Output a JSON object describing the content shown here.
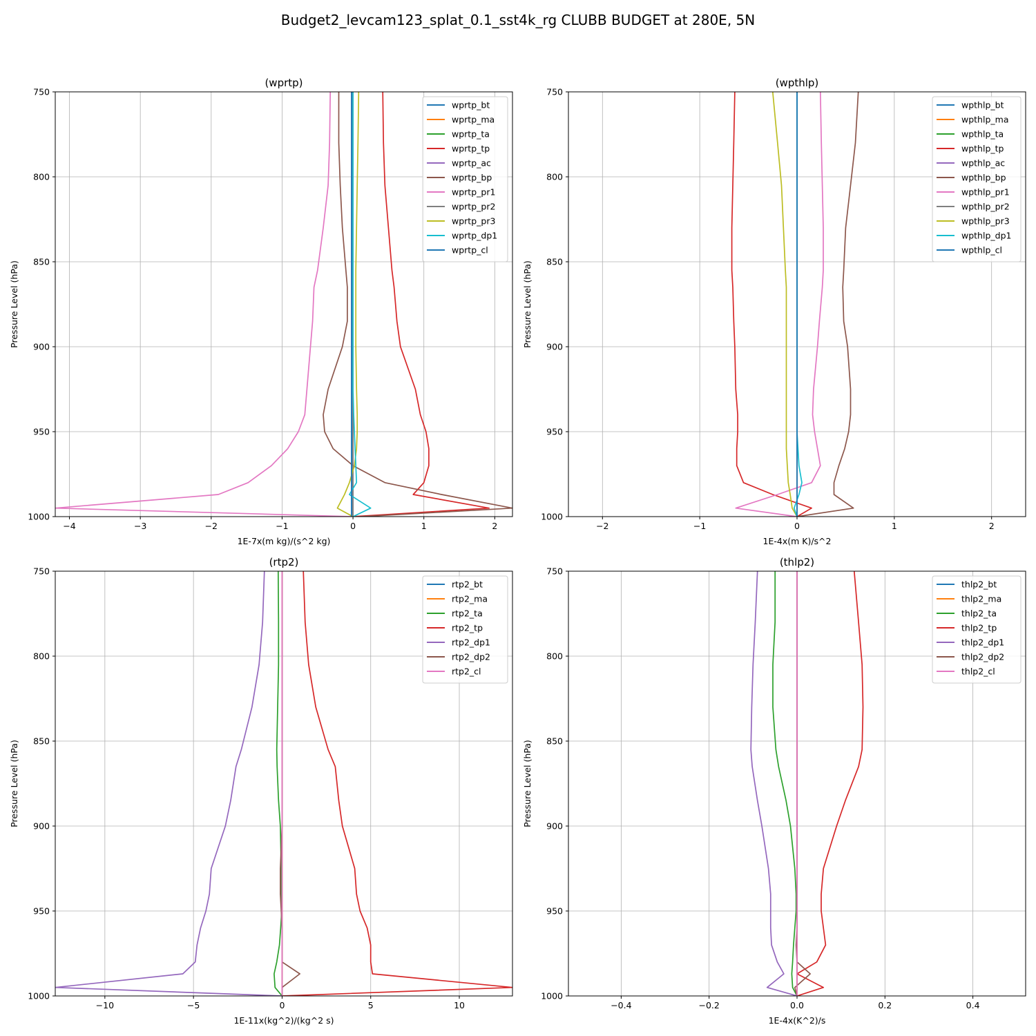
{
  "figure": {
    "title": "Budget2_levcam123_splat_0.1_sst4k_rg CLUBB BUDGET at 280E, 5N"
  },
  "chart_data": [
    {
      "type": "line",
      "title": "(wprtp)",
      "xlabel": "1E-7x(m kg)/(s^2 kg)",
      "ylabel": "Pressure Level (hPa)",
      "xlim": [
        -4.2,
        2.25
      ],
      "ylim": [
        1000,
        750
      ],
      "xticks": [
        -4,
        -3,
        -2,
        -1,
        0,
        1,
        2
      ],
      "xtick_labels": [
        "−4",
        "−3",
        "−2",
        "−1",
        "0",
        "1",
        "2"
      ],
      "yticks": [
        750,
        800,
        850,
        900,
        950,
        1000
      ],
      "ytick_labels": [
        "750",
        "800",
        "850",
        "900",
        "950",
        "1000"
      ],
      "grid": true,
      "legend_position": "top-right",
      "levels": [
        750,
        780,
        805,
        830,
        855,
        865,
        885,
        900,
        925,
        940,
        950,
        960,
        970,
        980,
        987,
        995,
        1000
      ],
      "series": [
        {
          "name": "wprtp_bt",
          "color": "#1f77b4",
          "values": [
            -0.02,
            -0.02,
            -0.02,
            -0.02,
            -0.02,
            -0.02,
            -0.02,
            -0.02,
            -0.02,
            -0.02,
            -0.02,
            -0.02,
            -0.02,
            -0.02,
            -0.02,
            -0.02,
            -0.02
          ]
        },
        {
          "name": "wprtp_ma",
          "color": "#ff7f0e",
          "values": [
            0,
            0,
            0,
            0,
            0,
            0,
            0,
            0,
            0,
            0,
            0,
            0,
            0,
            0,
            0,
            0,
            0
          ]
        },
        {
          "name": "wprtp_ta",
          "color": "#2ca02c",
          "values": [
            0,
            0,
            0,
            0,
            0,
            0,
            0,
            0,
            0,
            0,
            0,
            0,
            0,
            0,
            0,
            0,
            0
          ]
        },
        {
          "name": "wprtp_tp",
          "color": "#d62728",
          "values": [
            0.42,
            0.43,
            0.45,
            0.5,
            0.55,
            0.58,
            0.62,
            0.67,
            0.88,
            0.95,
            1.03,
            1.07,
            1.07,
            1.0,
            0.85,
            1.92,
            0.0
          ]
        },
        {
          "name": "wprtp_ac",
          "color": "#9467bd",
          "values": [
            0,
            0,
            0,
            0,
            0,
            0,
            0,
            0,
            0,
            0,
            0,
            0,
            0,
            0,
            0,
            0,
            0
          ]
        },
        {
          "name": "wprtp_bp",
          "color": "#8c564b",
          "values": [
            -0.2,
            -0.2,
            -0.18,
            -0.15,
            -0.1,
            -0.08,
            -0.08,
            -0.15,
            -0.35,
            -0.42,
            -0.4,
            -0.28,
            0.0,
            0.45,
            1.25,
            2.25,
            0.12
          ]
        },
        {
          "name": "wprtp_pr1",
          "color": "#e377c2",
          "values": [
            -0.32,
            -0.33,
            -0.35,
            -0.42,
            -0.5,
            -0.55,
            -0.57,
            -0.6,
            -0.65,
            -0.68,
            -0.77,
            -0.92,
            -1.15,
            -1.48,
            -1.9,
            -4.2,
            0.0
          ]
        },
        {
          "name": "wprtp_pr2",
          "color": "#7f7f7f",
          "values": [
            0,
            0,
            0,
            0,
            0,
            0,
            0,
            0,
            0,
            0,
            0,
            0,
            0,
            0,
            0,
            0,
            0
          ]
        },
        {
          "name": "wprtp_pr3",
          "color": "#bcbd22",
          "values": [
            0.08,
            0.07,
            0.06,
            0.05,
            0.04,
            0.04,
            0.04,
            0.04,
            0.05,
            0.06,
            0.06,
            0.05,
            0.02,
            -0.05,
            -0.12,
            -0.22,
            0.0
          ]
        },
        {
          "name": "wprtp_dp1",
          "color": "#17becf",
          "values": [
            0,
            0,
            0,
            0,
            0,
            0,
            0,
            0,
            0,
            0.01,
            0.02,
            0.03,
            0.04,
            0.05,
            -0.05,
            0.25,
            0.0
          ]
        },
        {
          "name": "wprtp_cl",
          "color": "#1f77b4",
          "values": [
            -0.02,
            -0.02,
            -0.02,
            -0.02,
            -0.02,
            -0.02,
            -0.02,
            -0.02,
            -0.02,
            -0.02,
            -0.02,
            -0.02,
            -0.02,
            -0.02,
            -0.02,
            -0.02,
            -0.02
          ]
        }
      ]
    },
    {
      "type": "line",
      "title": "(wpthlp)",
      "xlabel": "1E-4x(m K)/s^2",
      "ylabel": "Pressure Level (hPa)",
      "xlim": [
        -2.35,
        2.35
      ],
      "ylim": [
        1000,
        750
      ],
      "xticks": [
        -2,
        -1,
        0,
        1,
        2
      ],
      "xtick_labels": [
        "−2",
        "−1",
        "0",
        "1",
        "2"
      ],
      "yticks": [
        750,
        800,
        850,
        900,
        950,
        1000
      ],
      "ytick_labels": [
        "750",
        "800",
        "850",
        "900",
        "950",
        "1000"
      ],
      "grid": true,
      "legend_position": "top-right",
      "levels": [
        750,
        780,
        805,
        830,
        855,
        865,
        885,
        900,
        925,
        940,
        950,
        960,
        970,
        980,
        987,
        995,
        1000
      ],
      "series": [
        {
          "name": "wpthlp_bt",
          "color": "#1f77b4",
          "values": [
            0,
            0,
            0,
            0,
            0,
            0,
            0,
            0,
            0,
            0,
            0,
            0,
            0,
            0,
            0,
            0,
            0
          ]
        },
        {
          "name": "wpthlp_ma",
          "color": "#ff7f0e",
          "values": [
            0,
            0,
            0,
            0,
            0,
            0,
            0,
            0,
            0,
            0,
            0,
            0,
            0,
            0,
            0,
            0,
            0
          ]
        },
        {
          "name": "wpthlp_ta",
          "color": "#2ca02c",
          "values": [
            0,
            0,
            0,
            0,
            0,
            0,
            0,
            0,
            0,
            0,
            0,
            0,
            0,
            0,
            0,
            0,
            0
          ]
        },
        {
          "name": "wpthlp_tp",
          "color": "#d62728",
          "values": [
            -0.64,
            -0.65,
            -0.66,
            -0.67,
            -0.67,
            -0.66,
            -0.65,
            -0.64,
            -0.63,
            -0.61,
            -0.61,
            -0.62,
            -0.62,
            -0.55,
            -0.25,
            0.15,
            0.0
          ]
        },
        {
          "name": "wpthlp_ac",
          "color": "#9467bd",
          "values": [
            0,
            0,
            0,
            0,
            0,
            0,
            0,
            0,
            0,
            0,
            0,
            0,
            0,
            0,
            0,
            0,
            0
          ]
        },
        {
          "name": "wpthlp_bp",
          "color": "#8c564b",
          "values": [
            0.63,
            0.6,
            0.55,
            0.5,
            0.48,
            0.47,
            0.48,
            0.52,
            0.55,
            0.55,
            0.53,
            0.49,
            0.43,
            0.38,
            0.38,
            0.58,
            0.0
          ]
        },
        {
          "name": "wpthlp_pr1",
          "color": "#e377c2",
          "values": [
            0.24,
            0.25,
            0.26,
            0.27,
            0.27,
            0.26,
            0.23,
            0.21,
            0.17,
            0.16,
            0.18,
            0.21,
            0.24,
            0.15,
            -0.2,
            -0.63,
            0.0
          ]
        },
        {
          "name": "wpthlp_pr2",
          "color": "#7f7f7f",
          "values": [
            0,
            0,
            0,
            0,
            0,
            0,
            0,
            0,
            0,
            0,
            0,
            0,
            0,
            0,
            0,
            0,
            0
          ]
        },
        {
          "name": "wpthlp_pr3",
          "color": "#bcbd22",
          "values": [
            -0.25,
            -0.2,
            -0.16,
            -0.14,
            -0.12,
            -0.11,
            -0.11,
            -0.11,
            -0.11,
            -0.11,
            -0.11,
            -0.11,
            -0.1,
            -0.09,
            -0.07,
            -0.05,
            0.0
          ]
        },
        {
          "name": "wpthlp_dp1",
          "color": "#17becf",
          "values": [
            0,
            0,
            0,
            0,
            0,
            0,
            0,
            0,
            0,
            0,
            0,
            0.01,
            0.02,
            0.05,
            0.02,
            -0.03,
            0.0
          ]
        },
        {
          "name": "wpthlp_cl",
          "color": "#1f77b4",
          "values": [
            0,
            0,
            0,
            0,
            0,
            0,
            0,
            0,
            0,
            0,
            0,
            0,
            0,
            0,
            0,
            0,
            0
          ]
        }
      ]
    },
    {
      "type": "line",
      "title": "(rtp2)",
      "xlabel": "1E-11x(kg^2)/(kg^2 s)",
      "ylabel": "Pressure Level (hPa)",
      "xlim": [
        -12.8,
        13.0
      ],
      "ylim": [
        1000,
        750
      ],
      "xticks": [
        -10,
        -5,
        0,
        5,
        10
      ],
      "xtick_labels": [
        "−10",
        "−5",
        "0",
        "5",
        "10"
      ],
      "yticks": [
        750,
        800,
        850,
        900,
        950,
        1000
      ],
      "ytick_labels": [
        "750",
        "800",
        "850",
        "900",
        "950",
        "1000"
      ],
      "grid": true,
      "legend_position": "top-right",
      "levels": [
        750,
        780,
        805,
        830,
        855,
        865,
        885,
        900,
        925,
        940,
        950,
        960,
        970,
        980,
        987,
        995,
        1000
      ],
      "series": [
        {
          "name": "rtp2_bt",
          "color": "#1f77b4",
          "values": [
            0,
            0,
            0,
            0,
            0,
            0,
            0,
            0,
            0,
            0,
            0,
            0,
            0,
            0,
            0,
            0,
            0
          ]
        },
        {
          "name": "rtp2_ma",
          "color": "#ff7f0e",
          "values": [
            0,
            0,
            0,
            0,
            0,
            0,
            0,
            0,
            0,
            0,
            0,
            0,
            0,
            0,
            0,
            0,
            0
          ]
        },
        {
          "name": "rtp2_ta",
          "color": "#2ca02c",
          "values": [
            -0.22,
            -0.2,
            -0.2,
            -0.25,
            -0.3,
            -0.28,
            -0.2,
            -0.1,
            -0.05,
            -0.05,
            -0.02,
            -0.08,
            -0.15,
            -0.3,
            -0.45,
            -0.4,
            0.0
          ]
        },
        {
          "name": "rtp2_tp",
          "color": "#d62728",
          "values": [
            1.2,
            1.3,
            1.5,
            1.9,
            2.6,
            3.0,
            3.2,
            3.4,
            4.1,
            4.2,
            4.4,
            4.8,
            5.0,
            5.0,
            5.1,
            13.0,
            0.0
          ]
        },
        {
          "name": "rtp2_dp1",
          "color": "#9467bd",
          "values": [
            -1.0,
            -1.1,
            -1.3,
            -1.7,
            -2.3,
            -2.6,
            -2.9,
            -3.2,
            -4.0,
            -4.1,
            -4.3,
            -4.6,
            -4.8,
            -4.9,
            -5.6,
            -12.8,
            0.0
          ]
        },
        {
          "name": "rtp2_dp2",
          "color": "#8c564b",
          "values": [
            0,
            0,
            0,
            0,
            0,
            0,
            0,
            0,
            -0.1,
            -0.1,
            -0.05,
            0,
            0,
            0,
            1.0,
            0.0,
            0.0
          ]
        },
        {
          "name": "rtp2_cl",
          "color": "#e377c2",
          "values": [
            0,
            0,
            0,
            0,
            0,
            0,
            0,
            0,
            0,
            0,
            0,
            0,
            0,
            0,
            0,
            0,
            0
          ]
        }
      ]
    },
    {
      "type": "line",
      "title": "(thlp2)",
      "xlabel": "1E-4x(K^2)/s",
      "ylabel": "Pressure Level (hPa)",
      "xlim": [
        -0.52,
        0.52
      ],
      "ylim": [
        1000,
        750
      ],
      "xticks": [
        -0.4,
        -0.2,
        0.0,
        0.2,
        0.4
      ],
      "xtick_labels": [
        "−0.4",
        "−0.2",
        "0.0",
        "0.2",
        "0.4"
      ],
      "yticks": [
        750,
        800,
        850,
        900,
        950,
        1000
      ],
      "ytick_labels": [
        "750",
        "800",
        "850",
        "900",
        "950",
        "1000"
      ],
      "grid": true,
      "legend_position": "top-right",
      "levels": [
        750,
        780,
        805,
        830,
        855,
        865,
        885,
        900,
        925,
        940,
        950,
        960,
        970,
        980,
        987,
        995,
        1000
      ],
      "series": [
        {
          "name": "thlp2_bt",
          "color": "#1f77b4",
          "values": [
            0,
            0,
            0,
            0,
            0,
            0,
            0,
            0,
            0,
            0,
            0,
            0,
            0,
            0,
            0,
            0,
            0
          ]
        },
        {
          "name": "thlp2_ma",
          "color": "#ff7f0e",
          "values": [
            0,
            0,
            0,
            0,
            0,
            0,
            0,
            0,
            0,
            0,
            0,
            0,
            0,
            0,
            0,
            0,
            0
          ]
        },
        {
          "name": "thlp2_ta",
          "color": "#2ca02c",
          "values": [
            -0.05,
            -0.05,
            -0.055,
            -0.055,
            -0.048,
            -0.042,
            -0.025,
            -0.015,
            -0.005,
            -0.002,
            -0.002,
            -0.005,
            -0.008,
            -0.01,
            -0.012,
            -0.01,
            0.0
          ]
        },
        {
          "name": "thlp2_tp",
          "color": "#d62728",
          "values": [
            0.13,
            0.14,
            0.148,
            0.15,
            0.148,
            0.14,
            0.11,
            0.09,
            0.06,
            0.055,
            0.055,
            0.06,
            0.065,
            0.045,
            0.0,
            0.06,
            0.0
          ]
        },
        {
          "name": "thlp2_dp1",
          "color": "#9467bd",
          "values": [
            -0.09,
            -0.095,
            -0.1,
            -0.103,
            -0.105,
            -0.102,
            -0.09,
            -0.08,
            -0.065,
            -0.06,
            -0.06,
            -0.06,
            -0.058,
            -0.045,
            -0.03,
            -0.068,
            0.0
          ]
        },
        {
          "name": "thlp2_dp2",
          "color": "#8c564b",
          "values": [
            0,
            0,
            0,
            0,
            0,
            0,
            0,
            0,
            0,
            0,
            0,
            0,
            -0.002,
            0.0,
            0.03,
            -0.005,
            0.0
          ]
        },
        {
          "name": "thlp2_cl",
          "color": "#e377c2",
          "values": [
            0,
            0,
            0,
            0,
            0,
            0,
            0,
            0,
            0,
            0,
            0,
            0,
            0,
            0,
            0,
            0,
            0
          ]
        }
      ]
    }
  ]
}
